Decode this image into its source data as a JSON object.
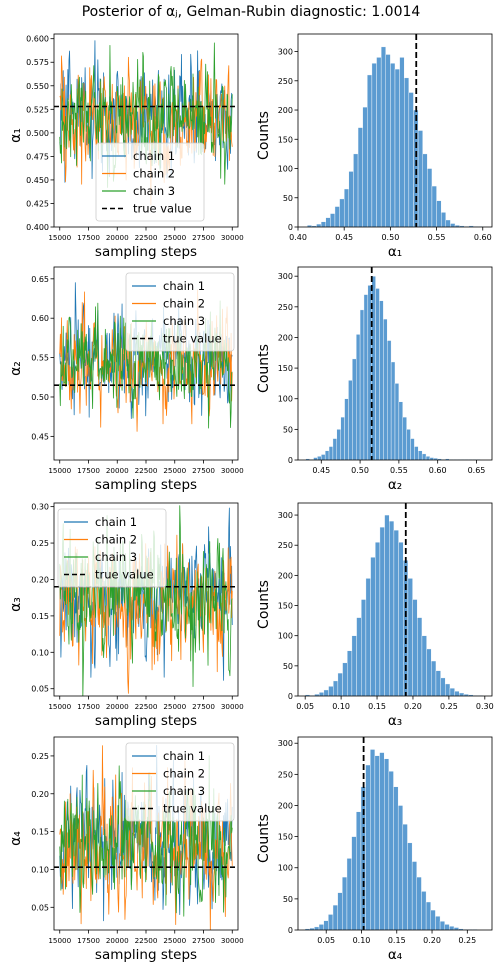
{
  "figure": {
    "title": "Posterior of αⱼ, Gelman-Rubin diagnostic: 1.0014"
  },
  "colors": {
    "chain1": "#1f77b4",
    "chain2": "#ff7f0e",
    "chain3": "#2ca02c",
    "hist": "#5b9bd1",
    "hist_edge": "#ffffff",
    "truth": "#000000"
  },
  "chart_data": [
    {
      "type": "line",
      "panel": "trace-1",
      "xlabel": "sampling steps",
      "ylabel": "α₁",
      "xlim": [
        14500,
        30500
      ],
      "ylim": [
        0.4,
        0.605
      ],
      "xticks": [
        15000,
        17500,
        20000,
        22500,
        25000,
        27500,
        30000
      ],
      "xtick_labels": [
        "15000",
        "17500",
        "20000",
        "22500",
        "25000",
        "27500",
        "30000"
      ],
      "yticks": [
        0.4,
        0.425,
        0.45,
        0.475,
        0.5,
        0.525,
        0.55,
        0.575,
        0.6
      ],
      "ytick_labels": [
        "0.400",
        "0.425",
        "0.450",
        "0.475",
        "0.500",
        "0.525",
        "0.550",
        "0.575",
        "0.600"
      ],
      "series": [
        {
          "name": "chain 1",
          "mean": 0.515,
          "sd": 0.028
        },
        {
          "name": "chain 2",
          "mean": 0.515,
          "sd": 0.028
        },
        {
          "name": "chain 3",
          "mean": 0.515,
          "sd": 0.028
        }
      ],
      "true_value": 0.528,
      "true_label": "true value",
      "legend_loc": "lower-center"
    },
    {
      "type": "bar",
      "panel": "hist-1",
      "xlabel": "α₁",
      "ylabel": "Counts",
      "xlim": [
        0.4,
        0.61
      ],
      "ylim": [
        0,
        330
      ],
      "xticks": [
        0.4,
        0.45,
        0.5,
        0.55,
        0.6
      ],
      "xtick_labels": [
        "0.40",
        "0.45",
        "0.50",
        "0.55",
        "0.60"
      ],
      "yticks": [
        0,
        50,
        100,
        150,
        200,
        250,
        300
      ],
      "ytick_labels": [
        "0",
        "50",
        "100",
        "150",
        "200",
        "250",
        "300"
      ],
      "bin_start": 0.41,
      "bin_width": 0.005,
      "counts": [
        3,
        2,
        5,
        9,
        16,
        23,
        35,
        48,
        65,
        95,
        125,
        170,
        205,
        260,
        280,
        290,
        308,
        295,
        280,
        270,
        290,
        255,
        230,
        200,
        165,
        125,
        100,
        70,
        45,
        25,
        12,
        6,
        3,
        2,
        1,
        2,
        1,
        1
      ],
      "true_value": 0.528
    },
    {
      "type": "line",
      "panel": "trace-2",
      "xlabel": "sampling steps",
      "ylabel": "α₂",
      "xlim": [
        14500,
        30500
      ],
      "ylim": [
        0.42,
        0.665
      ],
      "xticks": [
        15000,
        17500,
        20000,
        22500,
        25000,
        27500,
        30000
      ],
      "xtick_labels": [
        "15000",
        "17500",
        "20000",
        "22500",
        "25000",
        "27500",
        "30000"
      ],
      "yticks": [
        0.45,
        0.5,
        0.55,
        0.6,
        0.65
      ],
      "ytick_labels": [
        "0.45",
        "0.50",
        "0.55",
        "0.60",
        "0.65"
      ],
      "series": [
        {
          "name": "chain 1",
          "mean": 0.545,
          "sd": 0.03
        },
        {
          "name": "chain 2",
          "mean": 0.545,
          "sd": 0.03
        },
        {
          "name": "chain 3",
          "mean": 0.545,
          "sd": 0.03
        }
      ],
      "true_value": 0.515,
      "true_label": "true value",
      "legend_loc": "upper-right"
    },
    {
      "type": "bar",
      "panel": "hist-2",
      "xlabel": "α₂",
      "ylabel": "Counts",
      "xlim": [
        0.42,
        0.67
      ],
      "ylim": [
        0,
        315
      ],
      "xticks": [
        0.45,
        0.5,
        0.55,
        0.6,
        0.65
      ],
      "xtick_labels": [
        "0.45",
        "0.50",
        "0.55",
        "0.60",
        "0.65"
      ],
      "yticks": [
        0,
        50,
        100,
        150,
        200,
        250,
        300
      ],
      "ytick_labels": [
        "0",
        "50",
        "100",
        "150",
        "200",
        "250",
        "300"
      ],
      "bin_start": 0.43,
      "bin_width": 0.005,
      "counts": [
        2,
        1,
        4,
        6,
        9,
        15,
        22,
        35,
        50,
        70,
        100,
        130,
        165,
        205,
        245,
        270,
        285,
        300,
        280,
        260,
        230,
        195,
        160,
        125,
        95,
        70,
        50,
        35,
        22,
        15,
        10,
        6,
        4,
        3,
        2,
        1,
        2,
        1,
        1,
        1,
        1,
        1,
        1,
        1,
        1
      ],
      "true_value": 0.515
    },
    {
      "type": "line",
      "panel": "trace-3",
      "xlabel": "sampling steps",
      "ylabel": "α₃",
      "xlim": [
        14500,
        30500
      ],
      "ylim": [
        0.04,
        0.305
      ],
      "xticks": [
        15000,
        17500,
        20000,
        22500,
        25000,
        27500,
        30000
      ],
      "xtick_labels": [
        "15000",
        "17500",
        "20000",
        "22500",
        "25000",
        "27500",
        "30000"
      ],
      "yticks": [
        0.05,
        0.1,
        0.15,
        0.2,
        0.25,
        0.3
      ],
      "ytick_labels": [
        "0.05",
        "0.10",
        "0.15",
        "0.20",
        "0.25",
        "0.30"
      ],
      "series": [
        {
          "name": "chain 1",
          "mean": 0.172,
          "sd": 0.04
        },
        {
          "name": "chain 2",
          "mean": 0.172,
          "sd": 0.04
        },
        {
          "name": "chain 3",
          "mean": 0.172,
          "sd": 0.04
        }
      ],
      "true_value": 0.19,
      "true_label": "true value",
      "legend_loc": "upper-left"
    },
    {
      "type": "bar",
      "panel": "hist-3",
      "xlabel": "α₃",
      "ylabel": "Counts",
      "xlim": [
        0.04,
        0.31
      ],
      "ylim": [
        0,
        320
      ],
      "xticks": [
        0.05,
        0.1,
        0.15,
        0.2,
        0.25,
        0.3
      ],
      "xtick_labels": [
        "0.05",
        "0.10",
        "0.15",
        "0.20",
        "0.25",
        "0.30"
      ],
      "yticks": [
        0,
        50,
        100,
        150,
        200,
        250,
        300
      ],
      "ytick_labels": [
        "0",
        "50",
        "100",
        "150",
        "200",
        "250",
        "300"
      ],
      "bin_start": 0.05,
      "bin_width": 0.0065,
      "counts": [
        2,
        1,
        3,
        6,
        10,
        16,
        25,
        38,
        55,
        75,
        100,
        130,
        160,
        195,
        230,
        255,
        280,
        300,
        290,
        275,
        255,
        225,
        195,
        160,
        130,
        100,
        78,
        58,
        42,
        30,
        20,
        13,
        8,
        5,
        3,
        2,
        1,
        1
      ],
      "true_value": 0.19
    },
    {
      "type": "line",
      "panel": "trace-4",
      "xlabel": "sampling steps",
      "ylabel": "α₄",
      "xlim": [
        14500,
        30500
      ],
      "ylim": [
        0.02,
        0.275
      ],
      "xticks": [
        15000,
        17500,
        20000,
        22500,
        25000,
        27500,
        30000
      ],
      "xtick_labels": [
        "15000",
        "17500",
        "20000",
        "22500",
        "25000",
        "27500",
        "30000"
      ],
      "yticks": [
        0.05,
        0.1,
        0.15,
        0.2,
        0.25
      ],
      "ytick_labels": [
        "0.05",
        "0.10",
        "0.15",
        "0.20",
        "0.25"
      ],
      "series": [
        {
          "name": "chain 1",
          "mean": 0.135,
          "sd": 0.04
        },
        {
          "name": "chain 2",
          "mean": 0.135,
          "sd": 0.04
        },
        {
          "name": "chain 3",
          "mean": 0.135,
          "sd": 0.04
        }
      ],
      "true_value": 0.103,
      "true_label": "true value",
      "legend_loc": "upper-right"
    },
    {
      "type": "bar",
      "panel": "hist-4",
      "xlabel": "α₄",
      "ylabel": "Counts",
      "xlim": [
        0.01,
        0.285
      ],
      "ylim": [
        0,
        310
      ],
      "xticks": [
        0.05,
        0.1,
        0.15,
        0.2,
        0.25
      ],
      "xtick_labels": [
        "0.05",
        "0.10",
        "0.15",
        "0.20",
        "0.25"
      ],
      "yticks": [
        0,
        50,
        100,
        150,
        200,
        250,
        300
      ],
      "ytick_labels": [
        "0",
        "50",
        "100",
        "150",
        "200",
        "250",
        "300"
      ],
      "bin_start": 0.02,
      "bin_width": 0.0066,
      "counts": [
        2,
        3,
        5,
        9,
        15,
        25,
        40,
        60,
        85,
        115,
        150,
        190,
        230,
        265,
        290,
        280,
        285,
        275,
        255,
        230,
        200,
        170,
        140,
        110,
        85,
        62,
        45,
        32,
        22,
        14,
        9,
        6,
        4,
        2,
        1,
        1,
        1
      ],
      "true_value": 0.103
    }
  ]
}
